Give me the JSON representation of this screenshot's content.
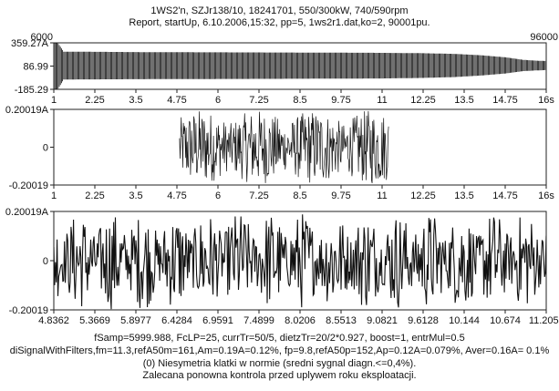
{
  "header": {
    "line1": "1WS2'n,  SZJr138/10,  18241701,  550/300kW,  740/590rpm",
    "line2": "Report, startUp, 6.10.2006,15:32, pp=5, 1ws2r1.dat,ko=2, 90001pu."
  },
  "footer": {
    "line1": "fSamp=5999.988, FcLP=25, currTr=50/5, dietzTr=20/2*0.927, boost=1, entrMul=0.5",
    "line2": "diSignalWithFilters,fm=11.3,refA50m=161,Am=0.19A=0.12%, fp=9.8,refA50p=152,Ap=0.12A=0.079%, Aver=0.16A= 0.1%",
    "line3": "(0)  Niesymetria klatki w normie (sredni sygnal diagn.<=0,4%).",
    "line4": "Zalecana ponowna kontrola przed uplywem roku eksploatacji."
  },
  "chart_data": [
    {
      "type": "line",
      "panel": "top",
      "corner_labels": {
        "left": "6000",
        "right": "96000"
      },
      "y_tick_labels": [
        "359.27A",
        "86.99",
        "-185.29"
      ],
      "y_ticks": [
        359.27,
        86.99,
        -185.29
      ],
      "ylim": [
        -185.29,
        359.27
      ],
      "x_tick_labels": [
        "1",
        "2.25",
        "3.5",
        "4.75",
        "6",
        "7.25",
        "8.5",
        "9.75",
        "11",
        "12.25",
        "13.5",
        "14.75",
        "16s"
      ],
      "xlim": [
        1,
        16
      ],
      "series": [
        {
          "envelope_x": [
            1,
            1.12,
            1.3,
            4,
            8,
            11,
            12.2,
            13.2,
            14,
            14.75,
            15.3,
            15.7,
            16
          ],
          "envelope_upper": [
            359.27,
            359.27,
            256,
            250,
            246,
            242,
            238,
            230,
            214,
            190,
            160,
            150,
            146
          ],
          "envelope_lower": [
            -185.29,
            -185.29,
            -70,
            -66,
            -62,
            -58,
            -52,
            -42,
            -24,
            0,
            28,
            36,
            40
          ]
        }
      ]
    },
    {
      "type": "line",
      "panel": "middle",
      "y_tick_labels": [
        "0.20019A",
        "0",
        "-0.20019"
      ],
      "y_ticks": [
        0.20019,
        0,
        -0.20019
      ],
      "ylim": [
        -0.20019,
        0.20019
      ],
      "x_tick_labels": [
        "1",
        "2.25",
        "3.5",
        "4.75",
        "6",
        "7.25",
        "8.5",
        "9.75",
        "11",
        "12.25",
        "13.5",
        "14.75",
        "16s"
      ],
      "xlim": [
        1,
        16
      ],
      "series": [
        {
          "x_range": [
            4.83,
            11.2
          ],
          "amplitude": 0.20019
        }
      ]
    },
    {
      "type": "line",
      "panel": "bottom",
      "y_tick_labels": [
        "0.20019A",
        "0",
        "-0.20019"
      ],
      "y_ticks": [
        0.20019,
        0,
        -0.20019
      ],
      "ylim": [
        -0.20019,
        0.20019
      ],
      "x_tick_labels": [
        "4.8362",
        "5.3669",
        "5.8977",
        "6.4284",
        "6.9591",
        "7.4899",
        "8.0206",
        "8.5513",
        "9.0821",
        "9.6128",
        "10.144",
        "10.674",
        "11.205s"
      ],
      "xlim": [
        4.8362,
        11.205
      ],
      "series": [
        {
          "x_range": [
            4.8362,
            11.205
          ],
          "amplitude": 0.20019
        }
      ]
    }
  ]
}
